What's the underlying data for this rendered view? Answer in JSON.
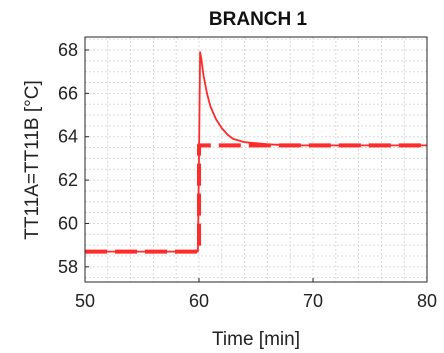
{
  "chart_data": {
    "type": "line",
    "title": "BRANCH 1",
    "xlabel": "Time [min]",
    "ylabel": "TT11A=TT11B [°C]",
    "xlim": [
      50,
      80
    ],
    "ylim": [
      57.3,
      68.6
    ],
    "xticks": [
      50,
      60,
      70,
      80
    ],
    "yticks": [
      58,
      60,
      62,
      64,
      66,
      68
    ],
    "grid": "minor",
    "series": [
      {
        "style": "solid",
        "color": "#ff2a2a",
        "x": [
          50,
          59.9,
          60.0,
          60.1,
          60.2,
          60.4,
          60.7,
          61.0,
          61.5,
          62.0,
          62.5,
          63.0,
          64.0,
          65.0,
          66.0,
          68.0,
          70.0,
          75.0,
          80.0
        ],
        "y": [
          58.7,
          58.7,
          63.0,
          67.9,
          67.6,
          66.8,
          66.0,
          65.4,
          64.8,
          64.4,
          64.1,
          63.9,
          63.75,
          63.7,
          63.65,
          63.6,
          63.6,
          63.6,
          63.6
        ]
      },
      {
        "style": "dashed",
        "color": "#ff2a2a",
        "x": [
          50,
          60.0,
          60.0,
          80.0
        ],
        "y": [
          58.7,
          58.7,
          63.6,
          63.6
        ]
      }
    ]
  }
}
